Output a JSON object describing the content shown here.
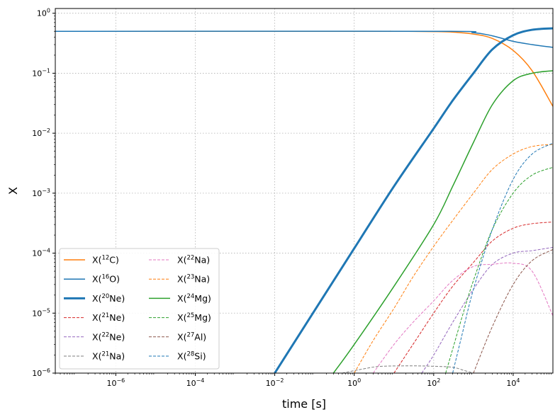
{
  "chart_data": {
    "type": "line",
    "xlabel": "time [s]",
    "ylabel": "X",
    "xscale": "log",
    "yscale": "log",
    "xlim": [
      3e-08,
      100000.0
    ],
    "ylim": [
      1e-06,
      1.2
    ],
    "grid": true,
    "legend": {
      "placement": "lower-left",
      "columns": 2
    },
    "xticks": [
      {
        "value": 1e-06,
        "base": "10",
        "exp": "−6"
      },
      {
        "value": 0.0001,
        "base": "10",
        "exp": "−4"
      },
      {
        "value": 0.01,
        "base": "10",
        "exp": "−2"
      },
      {
        "value": 1,
        "base": "10",
        "exp": "0"
      },
      {
        "value": 100.0,
        "base": "10",
        "exp": "2"
      },
      {
        "value": 10000.0,
        "base": "10",
        "exp": "4"
      }
    ],
    "yticks": [
      {
        "value": 1e-06,
        "base": "10",
        "exp": "−6"
      },
      {
        "value": 1e-05,
        "base": "10",
        "exp": "−5"
      },
      {
        "value": 0.0001,
        "base": "10",
        "exp": "−4"
      },
      {
        "value": 0.001,
        "base": "10",
        "exp": "−3"
      },
      {
        "value": 0.01,
        "base": "10",
        "exp": "−2"
      },
      {
        "value": 0.1,
        "base": "10",
        "exp": "−1"
      },
      {
        "value": 1,
        "base": "10",
        "exp": "0"
      }
    ],
    "series": [
      {
        "name": "X(12C)",
        "label_pre": "X(",
        "label_sup": "12",
        "label_post": "C)",
        "color": "#ff7f0e",
        "width": 1.5,
        "dash": false,
        "points": [
          [
            3e-08,
            0.5
          ],
          [
            1,
            0.5
          ],
          [
            10,
            0.5
          ],
          [
            100,
            0.495
          ],
          [
            300,
            0.485
          ],
          [
            1000,
            0.45
          ],
          [
            3000,
            0.38
          ],
          [
            10000,
            0.24
          ],
          [
            30000,
            0.11
          ],
          [
            100000,
            0.028
          ]
        ]
      },
      {
        "name": "X(16O)",
        "label_pre": "X(",
        "label_sup": "16",
        "label_post": "O)",
        "color": "#1f77b4",
        "width": 1.5,
        "dash": false,
        "points": [
          [
            3e-08,
            0.5
          ],
          [
            100,
            0.5
          ],
          [
            1000,
            0.475
          ],
          [
            3000,
            0.42
          ],
          [
            10000,
            0.34
          ],
          [
            30000,
            0.3
          ],
          [
            100000,
            0.27
          ]
        ]
      },
      {
        "name": "X(20Ne)",
        "label_pre": "X(",
        "label_sup": "20",
        "label_post": "Ne)",
        "color": "#1f77b4",
        "width": 3,
        "dash": false,
        "points": [
          [
            0.01,
            1e-06
          ],
          [
            0.1,
            1.1e-05
          ],
          [
            1,
            0.00012
          ],
          [
            10,
            0.0013
          ],
          [
            100,
            0.012
          ],
          [
            300,
            0.035
          ],
          [
            1000,
            0.1
          ],
          [
            3000,
            0.25
          ],
          [
            10000,
            0.43
          ],
          [
            30000,
            0.53
          ],
          [
            100000,
            0.56
          ]
        ]
      },
      {
        "name": "X(21Ne)",
        "label_pre": "X(",
        "label_sup": "21",
        "label_post": "Ne)",
        "color": "#d62728",
        "width": 1,
        "dash": true,
        "points": [
          [
            10,
            1e-06
          ],
          [
            30,
            3e-06
          ],
          [
            100,
            1e-05
          ],
          [
            300,
            2.8e-05
          ],
          [
            1000,
            7e-05
          ],
          [
            3000,
            0.00016
          ],
          [
            10000,
            0.00026
          ],
          [
            30000,
            0.00031
          ],
          [
            100000,
            0.00033
          ]
        ]
      },
      {
        "name": "X(22Ne)",
        "label_pre": "X(",
        "label_sup": "22",
        "label_post": "Ne)",
        "color": "#9467bd",
        "width": 1,
        "dash": true,
        "points": [
          [
            50,
            1e-06
          ],
          [
            100,
            2e-06
          ],
          [
            300,
            7e-06
          ],
          [
            1000,
            2.5e-05
          ],
          [
            3000,
            6.5e-05
          ],
          [
            10000,
            0.0001
          ],
          [
            30000,
            0.00011
          ],
          [
            100000,
            0.000125
          ]
        ]
      },
      {
        "name": "X(21Na)",
        "label_pre": "X(",
        "label_sup": "21",
        "label_post": "Na)",
        "color": "#7f7f7f",
        "width": 1,
        "dash": true,
        "points": [
          [
            0.5,
            1e-06
          ],
          [
            2,
            1.2e-06
          ],
          [
            5,
            1.3e-06
          ],
          [
            30,
            1.32e-06
          ],
          [
            100,
            1.3e-06
          ],
          [
            300,
            1.25e-06
          ],
          [
            600,
            1.1e-06
          ],
          [
            1000,
            1e-06
          ]
        ]
      },
      {
        "name": "X(22Na)",
        "label_pre": "X(",
        "label_sup": "22",
        "label_post": "Na)",
        "color": "#e377c2",
        "width": 1,
        "dash": true,
        "points": [
          [
            3,
            1e-06
          ],
          [
            10,
            3e-06
          ],
          [
            30,
            7e-06
          ],
          [
            100,
            1.6e-05
          ],
          [
            300,
            3.5e-05
          ],
          [
            1000,
            6e-05
          ],
          [
            3000,
            6.5e-05
          ],
          [
            10000,
            6.8e-05
          ],
          [
            30000,
            5e-05
          ],
          [
            100000,
            9e-06
          ]
        ]
      },
      {
        "name": "X(23Na)",
        "label_pre": "X(",
        "label_sup": "23",
        "label_post": "Na)",
        "color": "#ff7f0e",
        "width": 1,
        "dash": true,
        "points": [
          [
            1,
            1e-06
          ],
          [
            3,
            3.5e-06
          ],
          [
            10,
            1.2e-05
          ],
          [
            30,
            4e-05
          ],
          [
            100,
            0.00013
          ],
          [
            300,
            0.00035
          ],
          [
            1000,
            0.001
          ],
          [
            3000,
            0.0025
          ],
          [
            10000,
            0.0045
          ],
          [
            30000,
            0.006
          ],
          [
            100000,
            0.0065
          ]
        ]
      },
      {
        "name": "X(24Mg)",
        "label_pre": "X(",
        "label_sup": "24",
        "label_post": "Mg)",
        "color": "#2ca02c",
        "width": 1.5,
        "dash": false,
        "points": [
          [
            0.3,
            1e-06
          ],
          [
            1,
            3e-06
          ],
          [
            10,
            2.8e-05
          ],
          [
            100,
            0.0003
          ],
          [
            300,
            0.0013
          ],
          [
            1000,
            0.007
          ],
          [
            3000,
            0.03
          ],
          [
            10000,
            0.075
          ],
          [
            30000,
            0.1
          ],
          [
            100000,
            0.11
          ]
        ]
      },
      {
        "name": "X(25Mg)",
        "label_pre": "X(",
        "label_sup": "25",
        "label_post": "Mg)",
        "color": "#2ca02c",
        "width": 1,
        "dash": true,
        "points": [
          [
            200,
            1e-06
          ],
          [
            300,
            2.5e-06
          ],
          [
            500,
            8e-06
          ],
          [
            1000,
            3.5e-05
          ],
          [
            3000,
            0.00025
          ],
          [
            10000,
            0.001
          ],
          [
            30000,
            0.002
          ],
          [
            100000,
            0.0027
          ]
        ]
      },
      {
        "name": "X(27Al)",
        "label_pre": "X(",
        "label_sup": "27",
        "label_post": "Al)",
        "color": "#8c564b",
        "width": 1,
        "dash": true,
        "points": [
          [
            1000,
            1e-06
          ],
          [
            3000,
            6e-06
          ],
          [
            10000,
            3e-05
          ],
          [
            30000,
            7.5e-05
          ],
          [
            100000,
            0.000115
          ]
        ]
      },
      {
        "name": "X(28Si)",
        "label_pre": "X(",
        "label_sup": "28",
        "label_post": "Si)",
        "color": "#1f77b4",
        "width": 1,
        "dash": true,
        "points": [
          [
            300,
            1e-06
          ],
          [
            500,
            4e-06
          ],
          [
            1000,
            2.5e-05
          ],
          [
            3000,
            0.00025
          ],
          [
            10000,
            0.0017
          ],
          [
            30000,
            0.0045
          ],
          [
            100000,
            0.0068
          ]
        ]
      }
    ]
  }
}
